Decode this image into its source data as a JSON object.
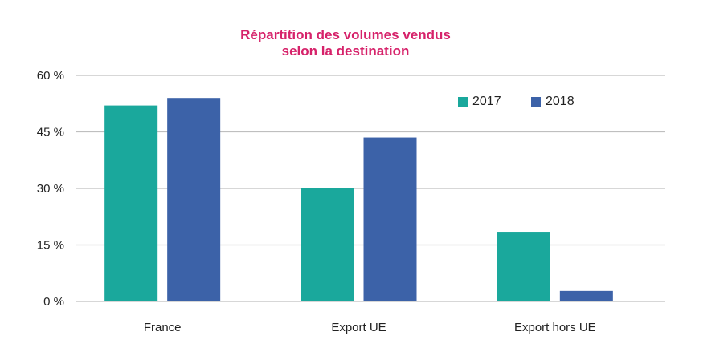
{
  "chart_data": {
    "type": "bar",
    "title": "Répartition des volumes vendus",
    "subtitle": "selon la destination",
    "categories": [
      "France",
      "Export UE",
      "Export hors UE"
    ],
    "series": [
      {
        "name": "2017",
        "color": "#1aa89c",
        "values": [
          52,
          30,
          18.5
        ]
      },
      {
        "name": "2018",
        "color": "#3c62a8",
        "values": [
          54,
          43.5,
          2.8
        ]
      }
    ],
    "yticks": [
      "0 %",
      "15 %",
      "30 %",
      "45 %",
      "60 %"
    ],
    "ytick_values": [
      0,
      15,
      30,
      45,
      60
    ],
    "ylim": [
      0,
      60
    ],
    "grid": true,
    "legend_position": "top-right",
    "gridline_color": "#bfbfbf"
  }
}
